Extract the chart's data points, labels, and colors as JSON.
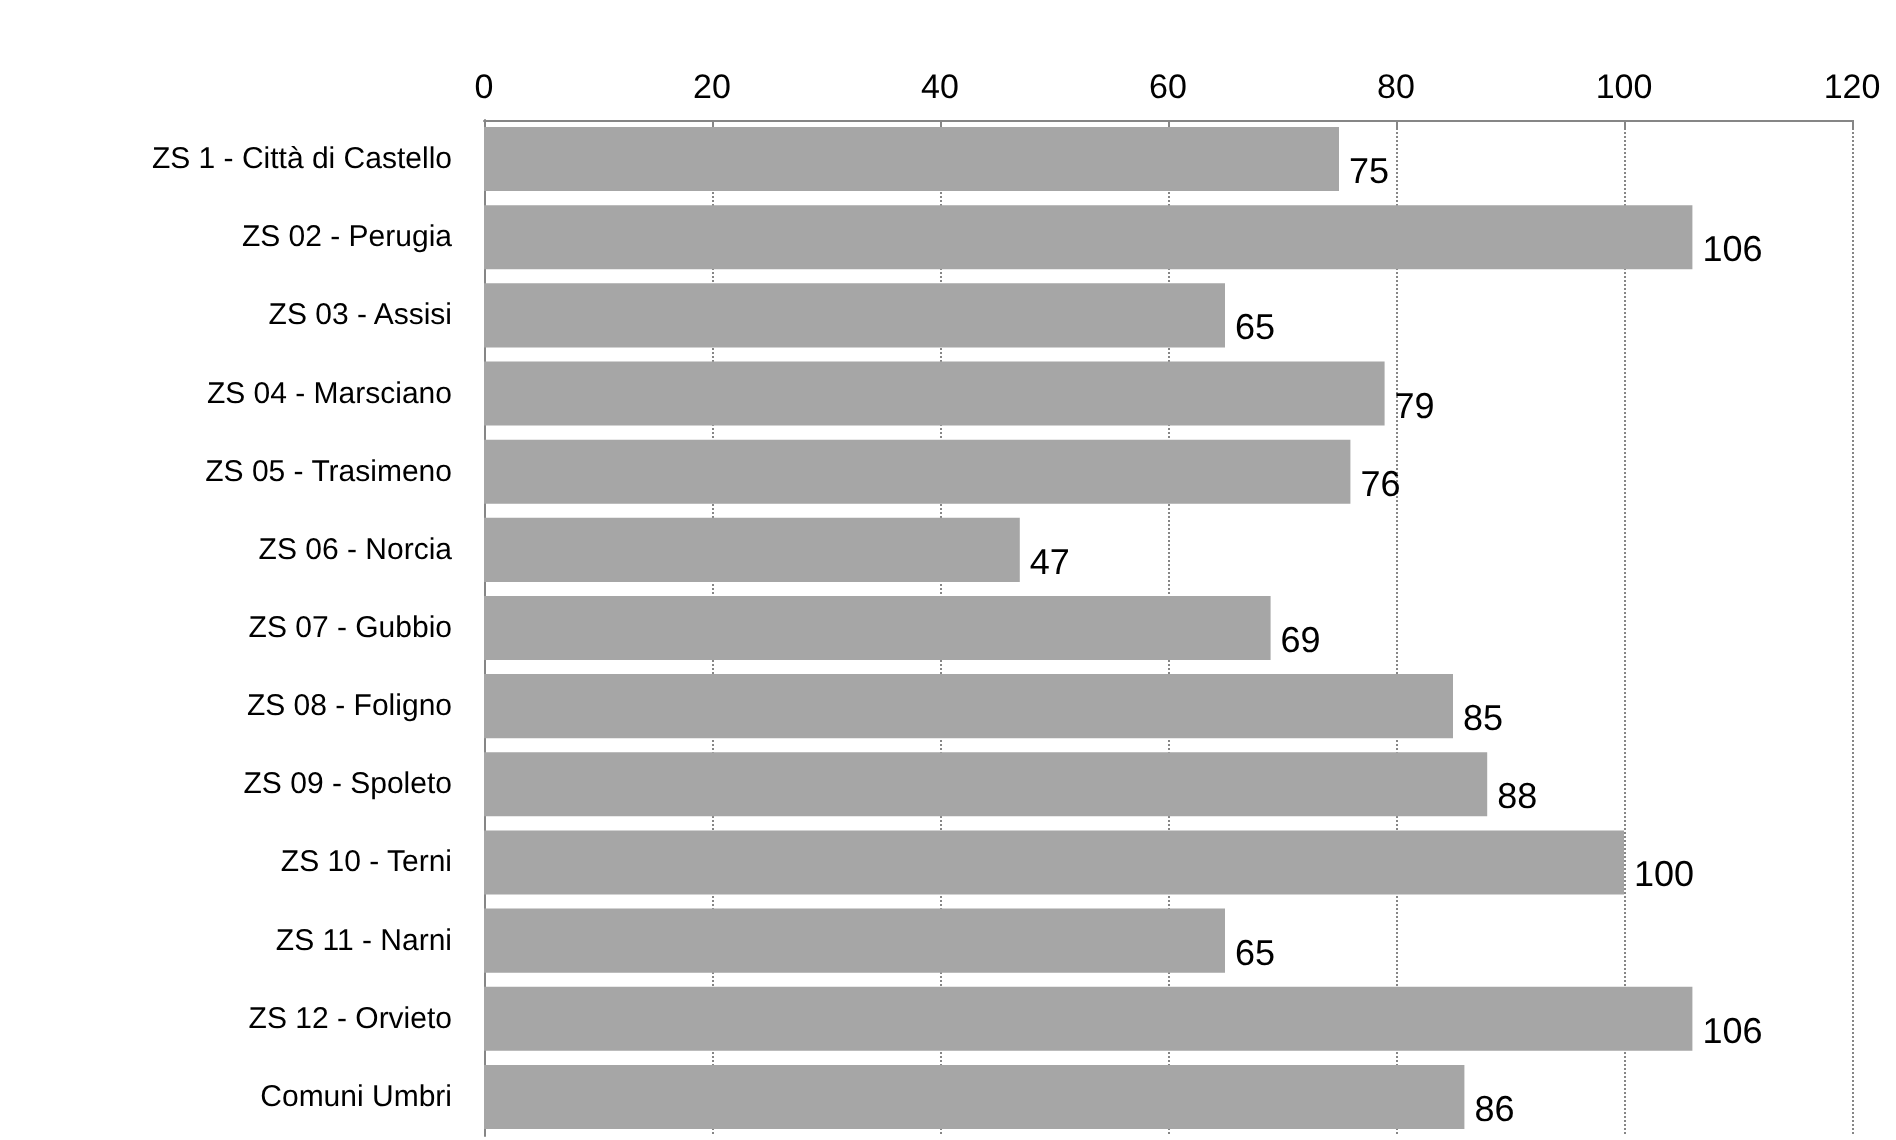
{
  "chart_data": {
    "type": "bar",
    "orientation": "horizontal",
    "categories": [
      "ZS 1 - Città di Castello",
      "ZS 02 - Perugia",
      "ZS 03 - Assisi",
      "ZS 04 - Marsciano",
      "ZS 05 - Trasimeno",
      "ZS 06 - Norcia",
      "ZS 07 - Gubbio",
      "ZS 08 - Foligno",
      "ZS 09 - Spoleto",
      "ZS 10 - Terni",
      "ZS 11 - Narni",
      "ZS 12 - Orvieto",
      "Comuni Umbri"
    ],
    "values": [
      75,
      106,
      65,
      79,
      76,
      47,
      69,
      85,
      88,
      100,
      65,
      106,
      86
    ],
    "color": "#a6a6a6",
    "xlim": [
      0,
      120
    ],
    "xticks": [
      0,
      20,
      40,
      60,
      80,
      100,
      120
    ],
    "grid": "x",
    "data_labels": true
  }
}
